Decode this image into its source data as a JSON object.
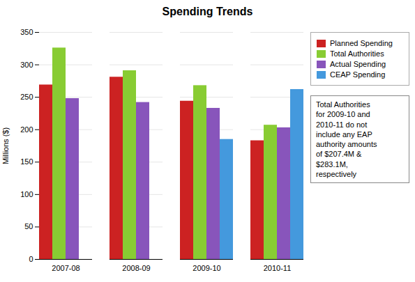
{
  "chart_data": {
    "type": "bar",
    "title": "Spending Trends",
    "ylabel": "Millions ($)",
    "categories": [
      "2007-08",
      "2008-09",
      "2009-10",
      "2010-11"
    ],
    "series": [
      {
        "name": "Planned Spending",
        "color": "#CC2222",
        "values": [
          269,
          281,
          244,
          183
        ]
      },
      {
        "name": "Total Authorities",
        "color": "#88CC33",
        "values": [
          326,
          291,
          268,
          207
        ]
      },
      {
        "name": "Actual Spending",
        "color": "#8855BB",
        "values": [
          248,
          242,
          233,
          203
        ]
      },
      {
        "name": "CEAP Spending",
        "color": "#4499DD",
        "values": [
          0,
          0,
          185,
          262
        ]
      }
    ],
    "ylim": [
      0,
      350
    ],
    "yticks": [
      0,
      50,
      100,
      150,
      200,
      250,
      300,
      350
    ],
    "grid": true,
    "legend": "upper right",
    "annotation": "Total Authorities\nfor 2009-10 and\n2010-11 do not\ninclude any EAP\nauthority amounts\nof $207.4M &\n$283.1M,\nrespectively"
  }
}
